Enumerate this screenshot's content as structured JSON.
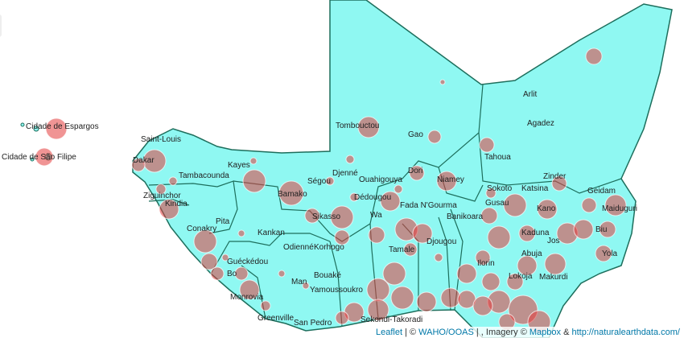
{
  "places": [
    "Cidade de Espargos",
    "Cidade de São Filipe",
    "Saint-Louis",
    "Dakar",
    "Tambacounda",
    "Kayes",
    "Ziguinchor",
    "Kindia",
    "Conakry",
    "Pita",
    "Kankan",
    "Guéckédou",
    "Bo",
    "Monrovia",
    "Greenville",
    "San Pedro",
    "Man",
    "Odienné",
    "Korhogo",
    "Bouaké",
    "Yamoussoukro",
    "Ségou",
    "Bamako",
    "Sikasso",
    "Djenné",
    "Tombouctou",
    "Gao",
    "Ouahigouya",
    "Dédougou",
    "Fada N'Gourma",
    "Dori",
    "Niamey",
    "Banikoara",
    "Djougou",
    "Tamale",
    "Wa",
    "Sekondi-Takoradi",
    "Arlit",
    "Agadez",
    "Tahoua",
    "Zinder",
    "Geidam",
    "Maiduguri",
    "Sokoto",
    "Katsina",
    "Kano",
    "Gusau",
    "Kaduna",
    "Jos",
    "Biu",
    "Yola",
    "Abuja",
    "Makurdi",
    "Lokoja",
    "Ilorin"
  ],
  "attribution": [
    "Leaflet",
    " | © ",
    "WAHO/OOAS",
    " | , Imagery © ",
    "Mapbox",
    " & ",
    "http://naturalearthdata.com/"
  ]
}
